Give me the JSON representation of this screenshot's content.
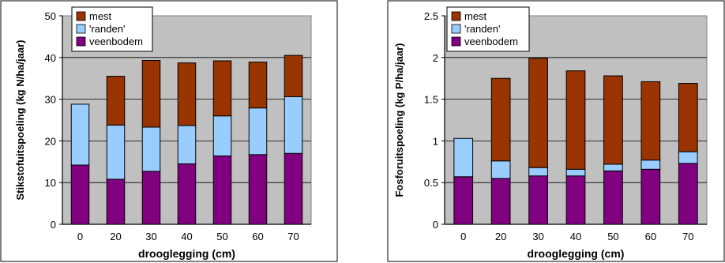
{
  "chart_data": [
    {
      "type": "bar",
      "stacked": true,
      "xlabel": "drooglegging (cm)",
      "ylabel": "Stikstofuitspoeling (kg N/ha/jaar)",
      "categories": [
        "0",
        "20",
        "30",
        "40",
        "50",
        "60",
        "70"
      ],
      "ylim": [
        0,
        50
      ],
      "yticks": [
        0,
        10,
        20,
        30,
        40,
        50
      ],
      "ytick_labels": [
        "0",
        "10",
        "20",
        "30",
        "40",
        "50"
      ],
      "grid": true,
      "legend_position": "top-left",
      "series": [
        {
          "name": "veenbodem",
          "color": "#800080",
          "values": [
            14.2,
            10.8,
            12.7,
            14.5,
            16.4,
            16.7,
            17.0
          ]
        },
        {
          "name": "'randen'",
          "color": "#99ccff",
          "values": [
            14.6,
            13.0,
            10.6,
            9.2,
            9.6,
            11.2,
            13.6
          ]
        },
        {
          "name": "mest",
          "color": "#993300",
          "values": [
            0,
            11.7,
            16.0,
            15.0,
            13.2,
            11.0,
            9.9
          ]
        }
      ]
    },
    {
      "type": "bar",
      "stacked": true,
      "xlabel": "drooglegging (cm)",
      "ylabel": "Fosforuitspoeling (kg P/ha/jaar)",
      "categories": [
        "0",
        "20",
        "30",
        "40",
        "50",
        "60",
        "70"
      ],
      "ylim": [
        0,
        2.5
      ],
      "yticks": [
        0,
        0.5,
        1,
        1.5,
        2,
        2.5
      ],
      "ytick_labels": [
        "0",
        "0.5",
        "1",
        "1.5",
        "2",
        "2.5"
      ],
      "grid": true,
      "legend_position": "top-left",
      "series": [
        {
          "name": "veenbodem",
          "color": "#800080",
          "values": [
            0.57,
            0.55,
            0.58,
            0.58,
            0.64,
            0.66,
            0.73
          ]
        },
        {
          "name": "'randen'",
          "color": "#99ccff",
          "values": [
            0.46,
            0.21,
            0.1,
            0.08,
            0.08,
            0.11,
            0.14
          ]
        },
        {
          "name": "mest",
          "color": "#993300",
          "values": [
            0,
            0.99,
            1.31,
            1.18,
            1.06,
            0.94,
            0.82
          ]
        }
      ]
    }
  ]
}
